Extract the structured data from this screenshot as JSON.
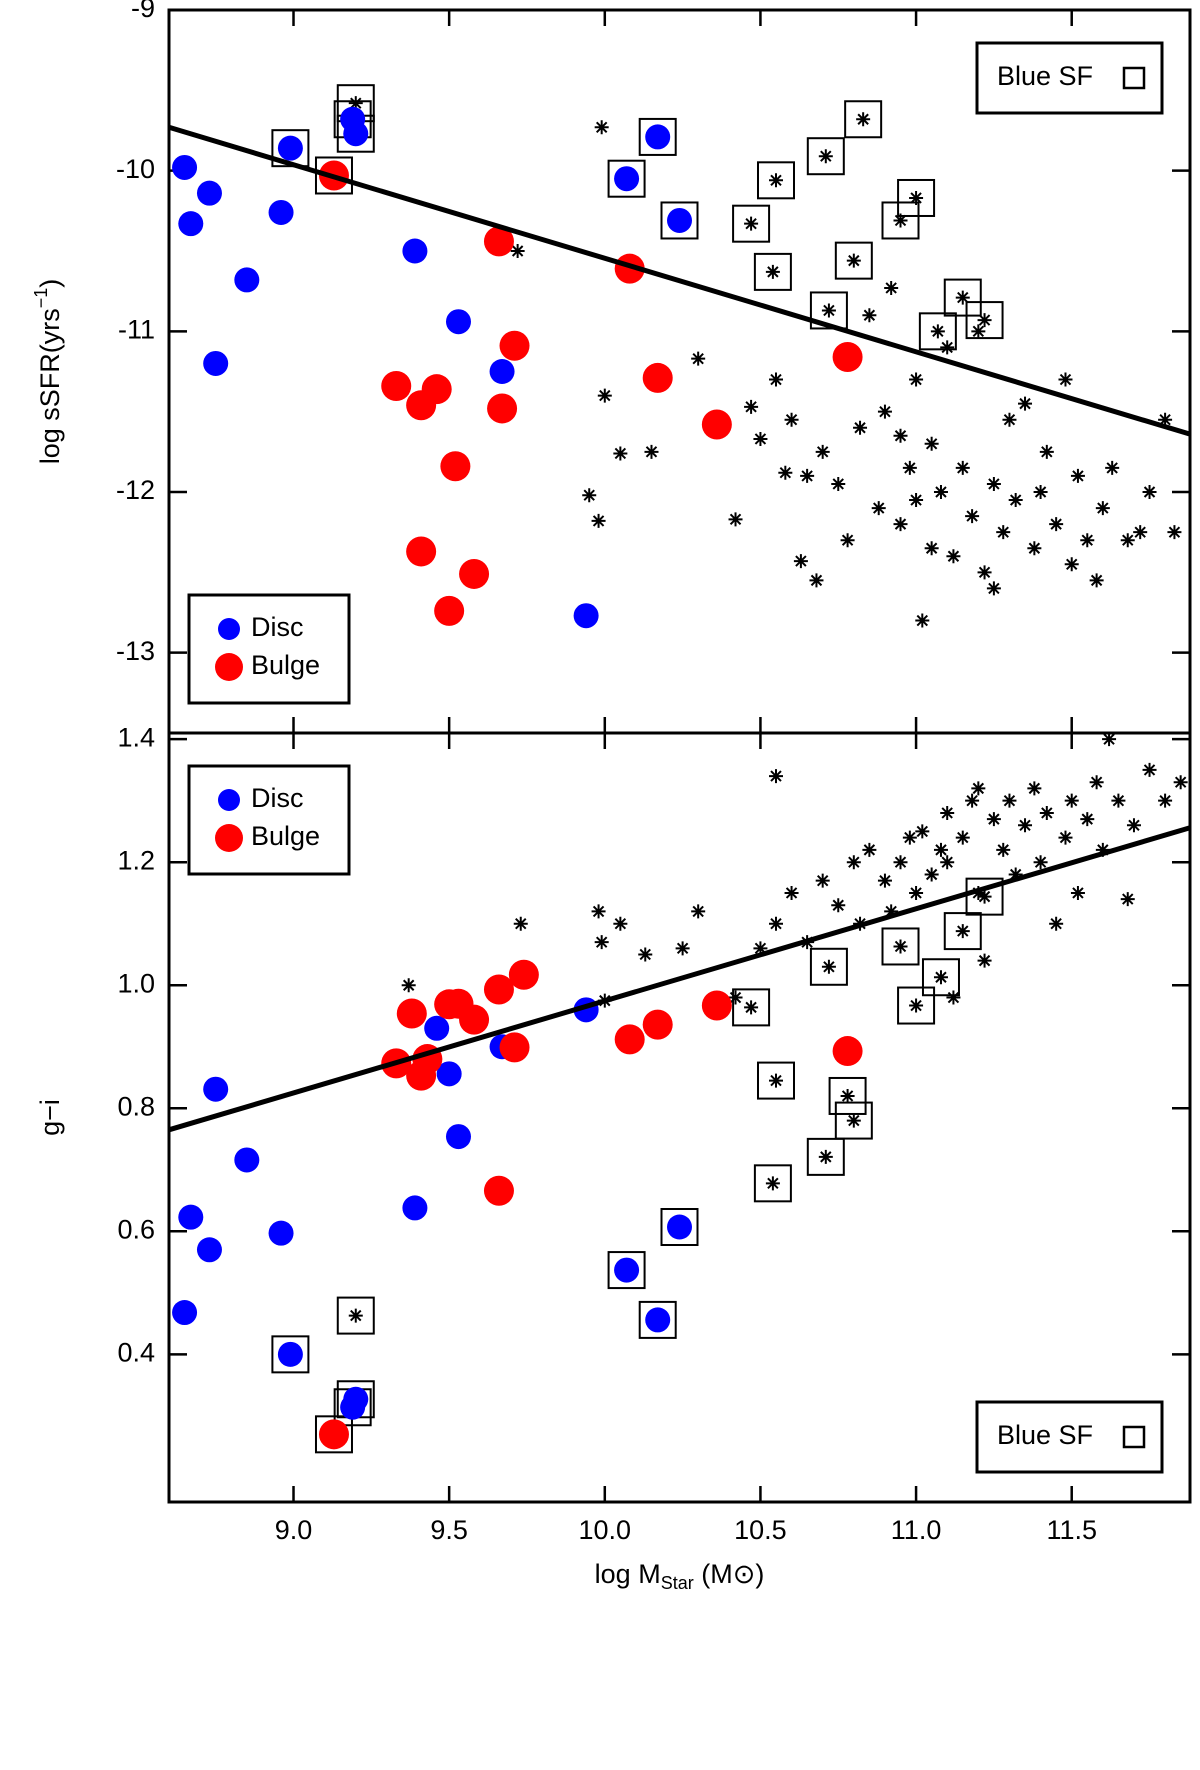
{
  "chart_data": [
    {
      "type": "scatter",
      "y_label": {
        "text": "log sSFR(yrs",
        "superscript": "−1",
        "suffix": ")"
      },
      "xlim": [
        8.6,
        11.88
      ],
      "ylim": [
        -13.5,
        -9
      ],
      "xticks": [
        9,
        9.5,
        10,
        10.5,
        11,
        11.5
      ],
      "yticks": [
        -9,
        -10,
        -11,
        -12,
        -13
      ],
      "fit_line": {
        "x": [
          8.6,
          11.88
        ],
        "y": [
          -9.73,
          -11.64
        ],
        "color": "#000000"
      },
      "series": [
        {
          "name": "Disc",
          "marker": "circle",
          "color": "#0000ff",
          "x": [
            8.65,
            8.67,
            8.73,
            8.75,
            8.85,
            8.96,
            8.99,
            9.19,
            9.2,
            9.39,
            9.53,
            9.67,
            9.94,
            10.07,
            10.17,
            10.24
          ],
          "y": [
            -9.98,
            -10.33,
            -10.14,
            -11.2,
            -10.68,
            -10.26,
            -9.86,
            -9.68,
            -9.77,
            -10.5,
            -10.94,
            -11.25,
            -12.77,
            -10.05,
            -9.79,
            -10.31
          ]
        },
        {
          "name": "Bulge",
          "marker": "circle",
          "color": "#ff0000",
          "x": [
            9.13,
            9.66,
            10.08,
            10.78,
            9.33,
            9.41,
            9.46,
            9.71,
            9.67,
            10.17,
            10.36,
            9.52,
            9.41,
            9.58,
            9.5
          ],
          "y": [
            -10.03,
            -10.44,
            -10.61,
            -11.16,
            -11.34,
            -11.46,
            -11.36,
            -11.09,
            -11.48,
            -11.29,
            -11.58,
            -11.84,
            -12.37,
            -12.51,
            -12.74
          ]
        },
        {
          "marker": "asterisk",
          "color": "#000000",
          "x": [
            9.2,
            10.83,
            10.71,
            10.55,
            11.0,
            10.47,
            10.95,
            10.8,
            10.54,
            10.72,
            11.15,
            11.07,
            11.22,
            9.99,
            9.72,
            10.0,
            10.05,
            9.95,
            9.98,
            10.15,
            10.3,
            10.42,
            10.47,
            10.5,
            10.55,
            10.58,
            10.6,
            10.65,
            10.63,
            10.68,
            10.7,
            10.75,
            10.78,
            10.82,
            10.85,
            10.88,
            10.9,
            10.92,
            10.95,
            10.98,
            11.0,
            11.02,
            11.05,
            11.05,
            11.08,
            11.1,
            11.12,
            11.15,
            11.18,
            11.2,
            11.22,
            11.25,
            11.28,
            11.3,
            11.32,
            11.35,
            11.38,
            11.4,
            11.42,
            11.45,
            11.48,
            11.5,
            11.52,
            11.55,
            11.58,
            11.6,
            11.63,
            11.68,
            11.72,
            11.75,
            11.8,
            11.83,
            11.0,
            10.95,
            11.25
          ],
          "y": [
            -9.58,
            -9.68,
            -9.91,
            -10.06,
            -10.17,
            -10.33,
            -10.31,
            -10.56,
            -10.63,
            -10.87,
            -10.79,
            -11.0,
            -10.93,
            -9.73,
            -10.5,
            -11.4,
            -11.76,
            -12.02,
            -12.18,
            -11.75,
            -11.17,
            -12.17,
            -11.47,
            -11.67,
            -11.3,
            -11.88,
            -11.55,
            -11.9,
            -12.43,
            -12.55,
            -11.75,
            -11.95,
            -12.3,
            -11.6,
            -10.9,
            -12.1,
            -11.5,
            -10.73,
            -12.2,
            -11.85,
            -12.05,
            -12.8,
            -11.7,
            -12.35,
            -12.0,
            -11.1,
            -12.4,
            -11.85,
            -12.15,
            -11.0,
            -12.5,
            -11.95,
            -12.25,
            -11.55,
            -12.05,
            -11.45,
            -12.35,
            -12.0,
            -11.75,
            -12.2,
            -11.3,
            -12.45,
            -11.9,
            -12.3,
            -12.55,
            -12.1,
            -11.85,
            -12.3,
            -12.25,
            -12.0,
            -11.55,
            -12.25,
            -11.3,
            -11.65,
            -12.6
          ]
        },
        {
          "name": "Blue SF",
          "marker": "square",
          "color": "#000000",
          "x": [
            8.99,
            9.19,
            9.2,
            10.07,
            10.17,
            10.24,
            9.13,
            9.2,
            10.83,
            10.71,
            10.55,
            11.0,
            10.47,
            10.95,
            10.8,
            10.54,
            10.72,
            11.15,
            11.07,
            11.22
          ],
          "y": [
            -9.86,
            -9.68,
            -9.77,
            -10.05,
            -9.79,
            -10.31,
            -10.03,
            -9.58,
            -9.68,
            -9.91,
            -10.06,
            -10.17,
            -10.33,
            -10.31,
            -10.56,
            -10.63,
            -10.87,
            -10.79,
            -11.0,
            -10.93
          ]
        }
      ],
      "legends": [
        {
          "corner": "lower left",
          "series": [
            0,
            1
          ]
        },
        {
          "corner": "upper right",
          "series": [
            3
          ]
        }
      ]
    },
    {
      "type": "scatter",
      "x_label": {
        "text": "log M",
        "subscript": "Star",
        "suffix": " (M⊙)"
      },
      "y_label": {
        "text": "g−i"
      },
      "xlim": [
        8.6,
        11.88
      ],
      "ylim": [
        0.16,
        1.41
      ],
      "xticks": [
        {
          "value": 9,
          "label": "9.0"
        },
        9.5,
        {
          "value": 10,
          "label": "10.0"
        },
        10.5,
        {
          "value": 11,
          "label": "11.0"
        },
        11.5
      ],
      "yticks": [
        1.4,
        1.2,
        {
          "value": 1,
          "label": "1.0"
        },
        0.8,
        0.6,
        0.4
      ],
      "fit_line": {
        "x": [
          8.6,
          11.88
        ],
        "y": [
          0.765,
          1.256
        ],
        "color": "#000000"
      },
      "series": [
        {
          "name": "Disc",
          "marker": "circle",
          "color": "#0000ff",
          "x": [
            8.65,
            8.67,
            8.73,
            8.75,
            8.85,
            8.96,
            8.99,
            9.19,
            9.2,
            9.39,
            9.46,
            9.5,
            9.53,
            9.67,
            9.94,
            10.07,
            10.17,
            10.24
          ],
          "y": [
            0.468,
            0.623,
            0.57,
            0.831,
            0.716,
            0.597,
            0.4,
            0.314,
            0.327,
            0.638,
            0.93,
            0.856,
            0.754,
            0.9,
            0.96,
            0.537,
            0.456,
            0.607
          ]
        },
        {
          "name": "Bulge",
          "marker": "circle",
          "color": "#ff0000",
          "x": [
            9.13,
            9.38,
            9.33,
            9.41,
            9.43,
            9.5,
            9.53,
            9.58,
            9.66,
            9.74,
            9.71,
            9.66,
            10.08,
            10.17,
            10.36,
            10.78
          ],
          "y": [
            0.27,
            0.954,
            0.873,
            0.853,
            0.88,
            0.969,
            0.97,
            0.944,
            0.993,
            1.017,
            0.899,
            0.666,
            0.912,
            0.936,
            0.967,
            0.893
          ]
        },
        {
          "marker": "asterisk",
          "color": "#000000",
          "x": [
            9.2,
            10.47,
            10.55,
            10.54,
            10.71,
            10.78,
            10.8,
            10.72,
            10.95,
            11.08,
            11.0,
            11.15,
            11.22,
            9.37,
            9.73,
            9.98,
            10.0,
            9.99,
            10.05,
            10.13,
            10.25,
            10.3,
            10.42,
            10.5,
            10.55,
            10.55,
            10.6,
            10.65,
            10.7,
            10.75,
            10.8,
            10.82,
            10.85,
            10.9,
            10.92,
            10.95,
            11.0,
            11.02,
            11.05,
            11.08,
            11.1,
            11.12,
            11.15,
            11.18,
            11.2,
            11.22,
            11.25,
            11.28,
            11.3,
            11.32,
            11.35,
            11.38,
            11.4,
            11.42,
            11.45,
            11.48,
            11.5,
            11.52,
            11.55,
            11.58,
            11.6,
            11.62,
            11.65,
            11.7,
            11.75,
            11.8,
            11.85,
            11.68,
            11.1,
            10.98,
            11.2
          ],
          "y": [
            0.463,
            0.964,
            0.845,
            0.678,
            0.721,
            0.82,
            0.78,
            1.03,
            1.063,
            1.013,
            0.967,
            1.088,
            1.144,
            1.0,
            1.1,
            1.12,
            0.975,
            1.07,
            1.1,
            1.05,
            1.06,
            1.12,
            0.98,
            1.06,
            1.1,
            1.34,
            1.15,
            1.07,
            1.17,
            1.13,
            1.2,
            1.1,
            1.22,
            1.17,
            1.12,
            1.2,
            1.15,
            1.25,
            1.18,
            1.22,
            1.28,
            0.98,
            1.24,
            1.3,
            1.15,
            1.04,
            1.27,
            1.22,
            1.3,
            1.18,
            1.26,
            1.32,
            1.2,
            1.28,
            1.1,
            1.24,
            1.3,
            1.15,
            1.27,
            1.33,
            1.22,
            1.4,
            1.3,
            1.26,
            1.35,
            1.3,
            1.33,
            1.14,
            1.2,
            1.24,
            1.32
          ]
        },
        {
          "name": "Blue SF",
          "marker": "square",
          "color": "#000000",
          "x": [
            8.99,
            9.19,
            9.2,
            10.07,
            10.17,
            10.24,
            9.13,
            9.2,
            10.47,
            10.55,
            10.54,
            10.71,
            10.78,
            10.8,
            10.72,
            10.95,
            11.08,
            11.0,
            11.15,
            11.22
          ],
          "y": [
            0.4,
            0.314,
            0.327,
            0.537,
            0.456,
            0.607,
            0.27,
            0.463,
            0.964,
            0.845,
            0.678,
            0.721,
            0.82,
            0.78,
            1.03,
            1.063,
            1.013,
            0.967,
            1.088,
            1.144
          ]
        }
      ],
      "legends": [
        {
          "corner": "upper left",
          "series": [
            0,
            1
          ]
        },
        {
          "corner": "lower right",
          "series": [
            3
          ]
        }
      ]
    }
  ]
}
